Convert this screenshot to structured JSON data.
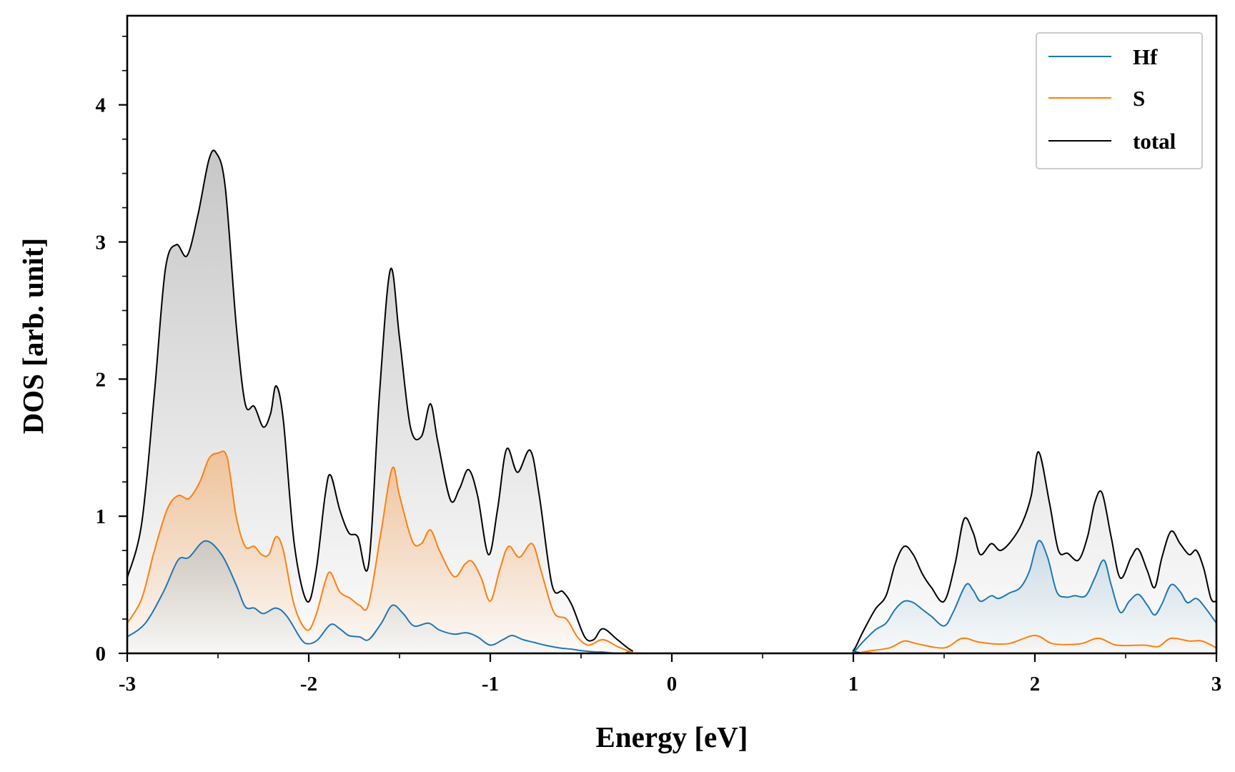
{
  "chart_data": {
    "type": "line",
    "title": "",
    "xlabel": "Energy [eV]",
    "ylabel": "DOS [arb. unit]",
    "xlim": [
      -3,
      3
    ],
    "ylim": [
      0,
      4.65
    ],
    "xticks": [
      -3,
      -2,
      -1,
      0,
      1,
      2,
      3
    ],
    "xtick_labels": [
      "-3",
      "-2",
      "-1",
      "0",
      "1",
      "2",
      "3"
    ],
    "yticks": [
      0,
      1,
      2,
      3,
      4
    ],
    "ytick_labels": [
      "0",
      "1",
      "2",
      "3",
      "4"
    ],
    "grid": false,
    "legend_position": "top-right",
    "fill_under_curves": "vertical gradient fading to transparent at zero",
    "series": [
      {
        "name": "Hf",
        "color": "#1f77b4",
        "points": [
          [
            -3.0,
            0.12
          ],
          [
            -2.9,
            0.22
          ],
          [
            -2.8,
            0.45
          ],
          [
            -2.72,
            0.68
          ],
          [
            -2.66,
            0.7
          ],
          [
            -2.57,
            0.82
          ],
          [
            -2.48,
            0.72
          ],
          [
            -2.4,
            0.5
          ],
          [
            -2.35,
            0.34
          ],
          [
            -2.3,
            0.33
          ],
          [
            -2.25,
            0.29
          ],
          [
            -2.18,
            0.33
          ],
          [
            -2.12,
            0.27
          ],
          [
            -2.04,
            0.1
          ],
          [
            -2.0,
            0.07
          ],
          [
            -1.95,
            0.1
          ],
          [
            -1.88,
            0.21
          ],
          [
            -1.83,
            0.18
          ],
          [
            -1.78,
            0.13
          ],
          [
            -1.72,
            0.12
          ],
          [
            -1.67,
            0.1
          ],
          [
            -1.6,
            0.22
          ],
          [
            -1.54,
            0.35
          ],
          [
            -1.48,
            0.29
          ],
          [
            -1.42,
            0.2
          ],
          [
            -1.34,
            0.22
          ],
          [
            -1.28,
            0.17
          ],
          [
            -1.2,
            0.14
          ],
          [
            -1.13,
            0.15
          ],
          [
            -1.07,
            0.12
          ],
          [
            -1.0,
            0.06
          ],
          [
            -0.93,
            0.1
          ],
          [
            -0.88,
            0.13
          ],
          [
            -0.82,
            0.1
          ],
          [
            -0.76,
            0.08
          ],
          [
            -0.7,
            0.06
          ],
          [
            -0.62,
            0.04
          ],
          [
            -0.55,
            0.03
          ],
          [
            -0.5,
            0.02
          ],
          [
            -0.42,
            0.01
          ],
          [
            -0.38,
            0.01
          ],
          [
            -0.3,
            0.0
          ],
          [
            -0.15,
            0.0
          ],
          [
            0.95,
            0.0
          ],
          [
            1.0,
            0.01
          ],
          [
            1.05,
            0.08
          ],
          [
            1.12,
            0.17
          ],
          [
            1.18,
            0.22
          ],
          [
            1.23,
            0.32
          ],
          [
            1.28,
            0.38
          ],
          [
            1.33,
            0.37
          ],
          [
            1.38,
            0.32
          ],
          [
            1.43,
            0.27
          ],
          [
            1.5,
            0.2
          ],
          [
            1.55,
            0.3
          ],
          [
            1.62,
            0.5
          ],
          [
            1.66,
            0.46
          ],
          [
            1.7,
            0.38
          ],
          [
            1.76,
            0.42
          ],
          [
            1.8,
            0.4
          ],
          [
            1.86,
            0.44
          ],
          [
            1.92,
            0.48
          ],
          [
            1.97,
            0.6
          ],
          [
            2.02,
            0.82
          ],
          [
            2.07,
            0.7
          ],
          [
            2.12,
            0.45
          ],
          [
            2.17,
            0.41
          ],
          [
            2.22,
            0.42
          ],
          [
            2.28,
            0.42
          ],
          [
            2.33,
            0.55
          ],
          [
            2.38,
            0.68
          ],
          [
            2.42,
            0.5
          ],
          [
            2.47,
            0.3
          ],
          [
            2.52,
            0.38
          ],
          [
            2.57,
            0.43
          ],
          [
            2.62,
            0.35
          ],
          [
            2.66,
            0.28
          ],
          [
            2.7,
            0.36
          ],
          [
            2.75,
            0.5
          ],
          [
            2.8,
            0.45
          ],
          [
            2.84,
            0.37
          ],
          [
            2.89,
            0.4
          ],
          [
            2.94,
            0.33
          ],
          [
            3.0,
            0.22
          ]
        ]
      },
      {
        "name": "S",
        "color": "#ff7f0e",
        "points": [
          [
            -3.0,
            0.22
          ],
          [
            -2.92,
            0.4
          ],
          [
            -2.85,
            0.75
          ],
          [
            -2.78,
            1.05
          ],
          [
            -2.72,
            1.15
          ],
          [
            -2.66,
            1.13
          ],
          [
            -2.6,
            1.25
          ],
          [
            -2.55,
            1.42
          ],
          [
            -2.5,
            1.46
          ],
          [
            -2.45,
            1.43
          ],
          [
            -2.4,
            1.0
          ],
          [
            -2.35,
            0.78
          ],
          [
            -2.3,
            0.78
          ],
          [
            -2.26,
            0.72
          ],
          [
            -2.22,
            0.72
          ],
          [
            -2.18,
            0.85
          ],
          [
            -2.14,
            0.75
          ],
          [
            -2.08,
            0.35
          ],
          [
            -2.01,
            0.17
          ],
          [
            -1.96,
            0.28
          ],
          [
            -1.91,
            0.52
          ],
          [
            -1.88,
            0.59
          ],
          [
            -1.83,
            0.45
          ],
          [
            -1.77,
            0.4
          ],
          [
            -1.72,
            0.35
          ],
          [
            -1.67,
            0.36
          ],
          [
            -1.6,
            0.9
          ],
          [
            -1.54,
            1.35
          ],
          [
            -1.5,
            1.15
          ],
          [
            -1.43,
            0.82
          ],
          [
            -1.38,
            0.8
          ],
          [
            -1.33,
            0.9
          ],
          [
            -1.28,
            0.75
          ],
          [
            -1.2,
            0.56
          ],
          [
            -1.14,
            0.65
          ],
          [
            -1.1,
            0.67
          ],
          [
            -1.05,
            0.55
          ],
          [
            -1.0,
            0.38
          ],
          [
            -0.95,
            0.6
          ],
          [
            -0.9,
            0.78
          ],
          [
            -0.84,
            0.7
          ],
          [
            -0.77,
            0.8
          ],
          [
            -0.72,
            0.6
          ],
          [
            -0.65,
            0.3
          ],
          [
            -0.58,
            0.25
          ],
          [
            -0.52,
            0.12
          ],
          [
            -0.46,
            0.06
          ],
          [
            -0.38,
            0.1
          ],
          [
            -0.3,
            0.05
          ],
          [
            -0.22,
            0.01
          ],
          [
            -0.15,
            0.0
          ],
          [
            1.0,
            0.0
          ],
          [
            1.05,
            0.01
          ],
          [
            1.1,
            0.02
          ],
          [
            1.2,
            0.04
          ],
          [
            1.28,
            0.09
          ],
          [
            1.35,
            0.07
          ],
          [
            1.5,
            0.04
          ],
          [
            1.6,
            0.11
          ],
          [
            1.7,
            0.08
          ],
          [
            1.85,
            0.07
          ],
          [
            2.0,
            0.13
          ],
          [
            2.1,
            0.07
          ],
          [
            2.25,
            0.07
          ],
          [
            2.35,
            0.11
          ],
          [
            2.45,
            0.06
          ],
          [
            2.6,
            0.06
          ],
          [
            2.68,
            0.05
          ],
          [
            2.75,
            0.11
          ],
          [
            2.85,
            0.09
          ],
          [
            2.92,
            0.09
          ],
          [
            3.0,
            0.04
          ]
        ]
      },
      {
        "name": "total",
        "color": "#000000",
        "points": [
          [
            -3.0,
            0.55
          ],
          [
            -2.92,
            0.95
          ],
          [
            -2.85,
            1.9
          ],
          [
            -2.79,
            2.8
          ],
          [
            -2.73,
            2.98
          ],
          [
            -2.67,
            2.9
          ],
          [
            -2.61,
            3.2
          ],
          [
            -2.55,
            3.6
          ],
          [
            -2.51,
            3.65
          ],
          [
            -2.46,
            3.4
          ],
          [
            -2.4,
            2.4
          ],
          [
            -2.35,
            1.82
          ],
          [
            -2.3,
            1.8
          ],
          [
            -2.25,
            1.65
          ],
          [
            -2.21,
            1.75
          ],
          [
            -2.18,
            1.95
          ],
          [
            -2.14,
            1.7
          ],
          [
            -2.08,
            0.8
          ],
          [
            -2.01,
            0.38
          ],
          [
            -1.96,
            0.6
          ],
          [
            -1.91,
            1.15
          ],
          [
            -1.88,
            1.3
          ],
          [
            -1.83,
            1.05
          ],
          [
            -1.78,
            0.88
          ],
          [
            -1.73,
            0.85
          ],
          [
            -1.67,
            0.65
          ],
          [
            -1.61,
            1.9
          ],
          [
            -1.55,
            2.8
          ],
          [
            -1.5,
            2.3
          ],
          [
            -1.44,
            1.65
          ],
          [
            -1.38,
            1.58
          ],
          [
            -1.33,
            1.82
          ],
          [
            -1.29,
            1.55
          ],
          [
            -1.22,
            1.12
          ],
          [
            -1.17,
            1.2
          ],
          [
            -1.12,
            1.34
          ],
          [
            -1.07,
            1.15
          ],
          [
            -1.01,
            0.72
          ],
          [
            -0.96,
            1.05
          ],
          [
            -0.91,
            1.49
          ],
          [
            -0.85,
            1.32
          ],
          [
            -0.78,
            1.48
          ],
          [
            -0.73,
            1.15
          ],
          [
            -0.66,
            0.5
          ],
          [
            -0.6,
            0.45
          ],
          [
            -0.55,
            0.35
          ],
          [
            -0.48,
            0.12
          ],
          [
            -0.43,
            0.1
          ],
          [
            -0.38,
            0.18
          ],
          [
            -0.3,
            0.1
          ],
          [
            -0.22,
            0.02
          ],
          [
            -0.15,
            0.0
          ],
          [
            0.95,
            0.0
          ],
          [
            1.0,
            0.02
          ],
          [
            1.05,
            0.15
          ],
          [
            1.12,
            0.32
          ],
          [
            1.18,
            0.42
          ],
          [
            1.23,
            0.65
          ],
          [
            1.28,
            0.78
          ],
          [
            1.33,
            0.72
          ],
          [
            1.38,
            0.58
          ],
          [
            1.43,
            0.48
          ],
          [
            1.5,
            0.38
          ],
          [
            1.56,
            0.65
          ],
          [
            1.61,
            0.98
          ],
          [
            1.66,
            0.88
          ],
          [
            1.7,
            0.72
          ],
          [
            1.76,
            0.8
          ],
          [
            1.81,
            0.75
          ],
          [
            1.87,
            0.82
          ],
          [
            1.93,
            0.95
          ],
          [
            1.98,
            1.15
          ],
          [
            2.02,
            1.47
          ],
          [
            2.08,
            1.1
          ],
          [
            2.13,
            0.75
          ],
          [
            2.18,
            0.73
          ],
          [
            2.24,
            0.68
          ],
          [
            2.29,
            0.85
          ],
          [
            2.33,
            1.1
          ],
          [
            2.37,
            1.17
          ],
          [
            2.42,
            0.85
          ],
          [
            2.47,
            0.55
          ],
          [
            2.53,
            0.7
          ],
          [
            2.57,
            0.76
          ],
          [
            2.62,
            0.6
          ],
          [
            2.66,
            0.48
          ],
          [
            2.7,
            0.7
          ],
          [
            2.75,
            0.89
          ],
          [
            2.8,
            0.8
          ],
          [
            2.85,
            0.72
          ],
          [
            2.89,
            0.75
          ],
          [
            2.93,
            0.62
          ],
          [
            2.97,
            0.4
          ],
          [
            3.0,
            0.38
          ]
        ]
      }
    ]
  }
}
